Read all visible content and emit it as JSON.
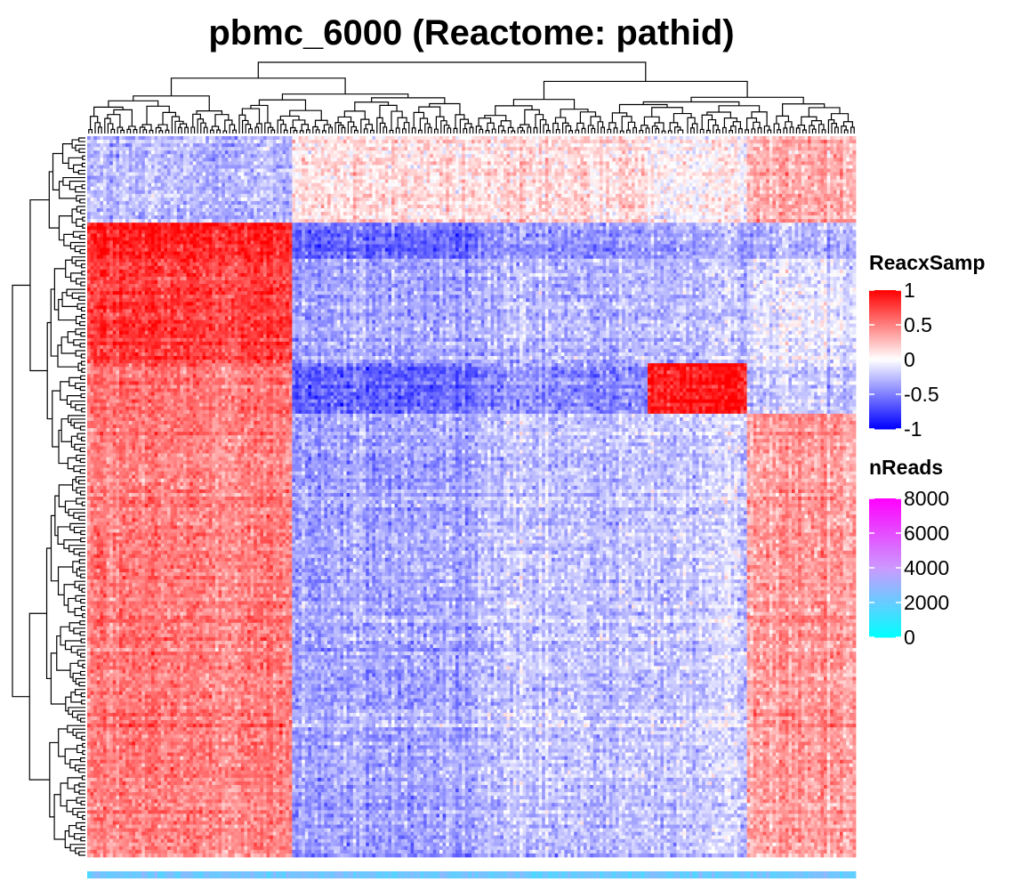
{
  "chart_data": {
    "type": "heatmap",
    "title": "pbmc_6000 (Reactome: pathid)",
    "row_dendrogram": true,
    "column_dendrogram": true,
    "legends": [
      {
        "name": "ReacxSamp",
        "ticks": [
          "1",
          "0.5",
          "0",
          "-0.5",
          "-1"
        ],
        "tick_values": [
          1,
          0.5,
          0,
          -0.5,
          -1
        ],
        "range": [
          -1,
          1
        ],
        "colors": [
          "#0000ff",
          "#ffffff",
          "#ff0000"
        ]
      },
      {
        "name": "nReads",
        "ticks": [
          "8000",
          "6000",
          "4000",
          "2000",
          "0"
        ],
        "tick_values": [
          8000,
          6000,
          4000,
          2000,
          0
        ],
        "range": [
          0,
          8000
        ],
        "colors": [
          "#00ffff",
          "#cc99ff",
          "#ff00ff"
        ]
      }
    ],
    "column_blocks": [
      {
        "fraction": 0.265,
        "level": 0.7
      },
      {
        "fraction": 0.245,
        "level": -0.35
      },
      {
        "fraction": 0.22,
        "level": -0.3
      },
      {
        "fraction": 0.13,
        "level": -0.15
      },
      {
        "fraction": 0.14,
        "level": 0.35
      }
    ],
    "row_blocks": [
      {
        "fraction": 0.12,
        "levels": [
          -0.25,
          0.15,
          0.15,
          0.05,
          0.35
        ]
      },
      {
        "fraction": 0.05,
        "levels": [
          0.9,
          -0.55,
          -0.4,
          -0.3,
          -0.25
        ]
      },
      {
        "fraction": 0.145,
        "levels": [
          0.75,
          -0.35,
          -0.3,
          -0.25,
          -0.1
        ]
      },
      {
        "fraction": 0.07,
        "levels": [
          0.55,
          -0.6,
          -0.45,
          0.9,
          -0.2
        ]
      },
      {
        "fraction": 0.61,
        "levels": [
          0.5,
          -0.35,
          -0.25,
          -0.2,
          0.4
        ]
      }
    ],
    "nReads_bar_level": 2200
  }
}
